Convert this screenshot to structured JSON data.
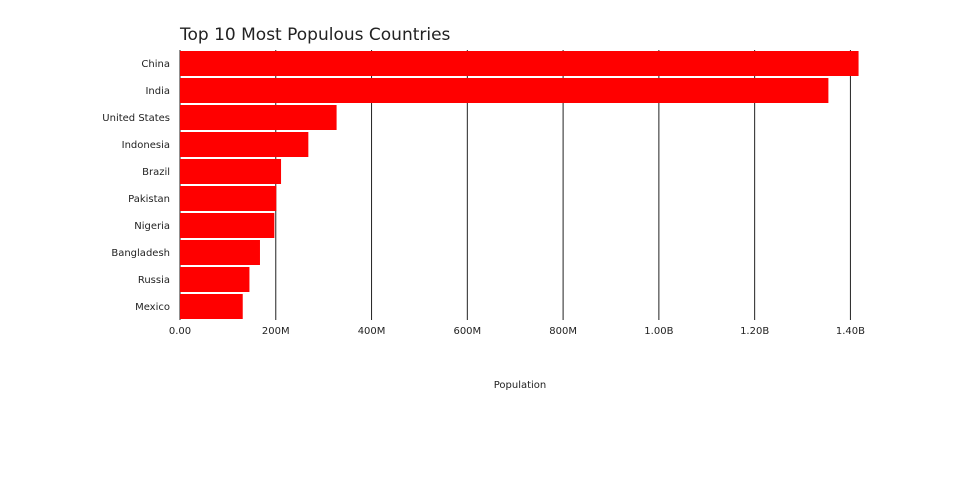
{
  "chart_data": {
    "type": "bar",
    "orientation": "horizontal",
    "title": "Top 10 Most Populous Countries",
    "xlabel": "Population",
    "ylabel": "",
    "categories": [
      "China",
      "India",
      "United States",
      "Indonesia",
      "Brazil",
      "Pakistan",
      "Nigeria",
      "Bangladesh",
      "Russia",
      "Mexico"
    ],
    "values": [
      1417000000,
      1354000000,
      327000000,
      268000000,
      211000000,
      201000000,
      197000000,
      167000000,
      145000000,
      131000000
    ],
    "xlim": [
      0,
      1420000000
    ],
    "xticks": [
      0,
      200000000,
      400000000,
      600000000,
      800000000,
      1000000000,
      1200000000,
      1400000000
    ],
    "xtick_labels": [
      "0.00",
      "200M",
      "400M",
      "600M",
      "800M",
      "1.00B",
      "1.20B",
      "1.40B"
    ],
    "grid": true,
    "bar_color": "#ff0000",
    "legend": "none"
  }
}
